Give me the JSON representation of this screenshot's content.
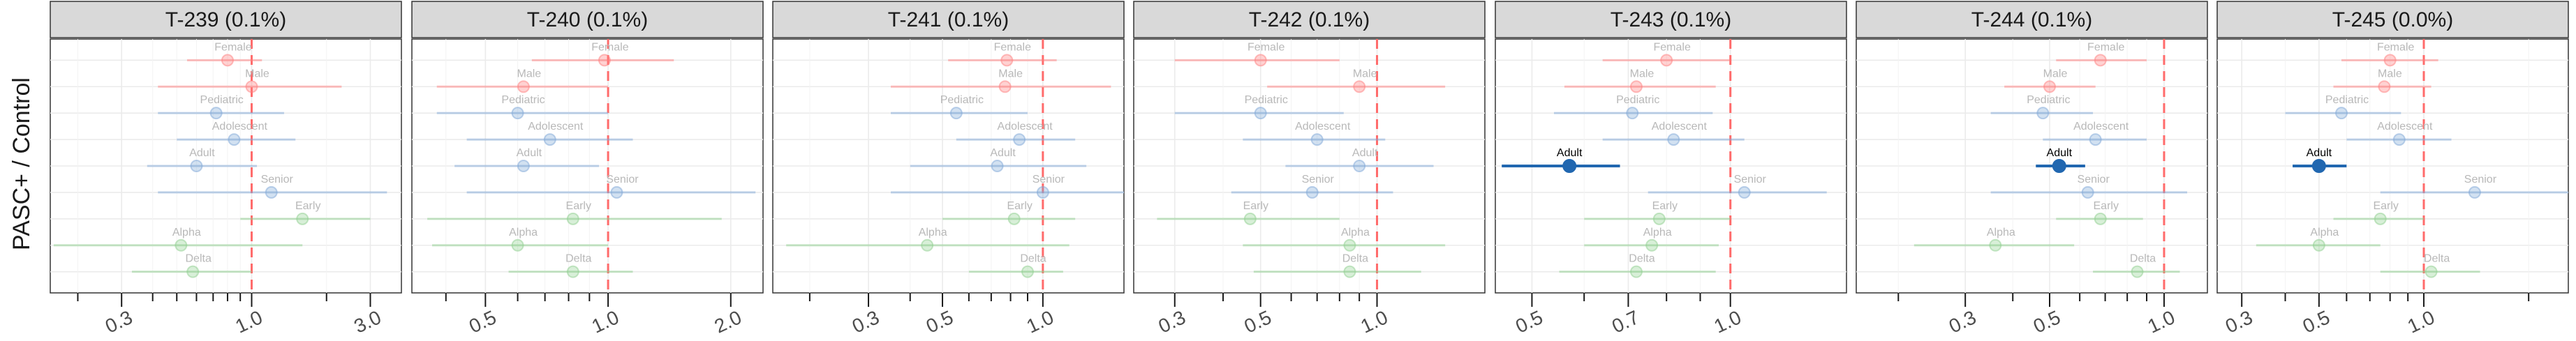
{
  "chart_data": {
    "type": "forest",
    "ylabel": "PASC+ / Control",
    "x_scale": "log",
    "reference_line": 1.0,
    "colors": {
      "sex": "#ff7f7f",
      "age": "#7fa8d8",
      "wave": "#8fd08f",
      "highlight": "#2167b0"
    },
    "row_order": [
      "Female",
      "Male",
      "Pediatric",
      "Adolescent",
      "Adult",
      "Senior",
      "Early",
      "Alpha",
      "Delta"
    ],
    "row_groups": {
      "Female": "sex",
      "Male": "sex",
      "Pediatric": "age",
      "Adolescent": "age",
      "Adult": "age",
      "Senior": "age",
      "Early": "wave",
      "Alpha": "wave",
      "Delta": "wave"
    },
    "panels": [
      {
        "title": "T-239 (0.1%)",
        "xlim": [
          0.155,
          4.0
        ],
        "xticks": [
          0.3,
          1.0,
          3.0
        ],
        "xtick_labels": [
          "0.3",
          "1.0",
          "3.0"
        ],
        "points": [
          {
            "label": "Female",
            "est": 0.8,
            "lo": 0.55,
            "hi": 1.1,
            "significant": false
          },
          {
            "label": "Male",
            "est": 1.0,
            "lo": 0.42,
            "hi": 2.3,
            "significant": false
          },
          {
            "label": "Pediatric",
            "est": 0.72,
            "lo": 0.42,
            "hi": 1.35,
            "significant": false
          },
          {
            "label": "Adolescent",
            "est": 0.85,
            "lo": 0.5,
            "hi": 1.5,
            "significant": false
          },
          {
            "label": "Adult",
            "est": 0.6,
            "lo": 0.38,
            "hi": 1.05,
            "significant": false
          },
          {
            "label": "Senior",
            "est": 1.2,
            "lo": 0.42,
            "hi": 3.5,
            "significant": false
          },
          {
            "label": "Early",
            "est": 1.6,
            "lo": 0.9,
            "hi": 3.0,
            "significant": false
          },
          {
            "label": "Alpha",
            "est": 0.52,
            "lo": 0.16,
            "hi": 1.6,
            "significant": false
          },
          {
            "label": "Delta",
            "est": 0.58,
            "lo": 0.33,
            "hi": 1.0,
            "significant": false
          }
        ]
      },
      {
        "title": "T-240 (0.1%)",
        "xlim": [
          0.33,
          2.4
        ],
        "xticks": [
          0.5,
          1.0,
          2.0
        ],
        "xtick_labels": [
          "0.5",
          "1.0",
          "2.0"
        ],
        "points": [
          {
            "label": "Female",
            "est": 0.98,
            "lo": 0.65,
            "hi": 1.45,
            "significant": false
          },
          {
            "label": "Male",
            "est": 0.62,
            "lo": 0.38,
            "hi": 1.0,
            "significant": false
          },
          {
            "label": "Pediatric",
            "est": 0.6,
            "lo": 0.38,
            "hi": 1.0,
            "significant": false
          },
          {
            "label": "Adolescent",
            "est": 0.72,
            "lo": 0.45,
            "hi": 1.15,
            "significant": false
          },
          {
            "label": "Adult",
            "est": 0.62,
            "lo": 0.42,
            "hi": 0.95,
            "significant": false
          },
          {
            "label": "Senior",
            "est": 1.05,
            "lo": 0.45,
            "hi": 2.3,
            "significant": false
          },
          {
            "label": "Early",
            "est": 0.82,
            "lo": 0.36,
            "hi": 1.9,
            "significant": false
          },
          {
            "label": "Alpha",
            "est": 0.6,
            "lo": 0.37,
            "hi": 1.0,
            "significant": false
          },
          {
            "label": "Delta",
            "est": 0.82,
            "lo": 0.57,
            "hi": 1.15,
            "significant": false
          }
        ]
      },
      {
        "title": "T-241 (0.1%)",
        "xlim": [
          0.155,
          1.75
        ],
        "xticks": [
          0.3,
          0.5,
          1.0
        ],
        "xtick_labels": [
          "0.3",
          "0.5",
          "1.0"
        ],
        "points": [
          {
            "label": "Female",
            "est": 0.78,
            "lo": 0.52,
            "hi": 1.1,
            "significant": false
          },
          {
            "label": "Male",
            "est": 0.77,
            "lo": 0.35,
            "hi": 1.6,
            "significant": false
          },
          {
            "label": "Pediatric",
            "est": 0.55,
            "lo": 0.35,
            "hi": 0.9,
            "significant": false
          },
          {
            "label": "Adolescent",
            "est": 0.85,
            "lo": 0.55,
            "hi": 1.25,
            "significant": false
          },
          {
            "label": "Adult",
            "est": 0.73,
            "lo": 0.4,
            "hi": 1.35,
            "significant": false
          },
          {
            "label": "Senior",
            "est": 1.0,
            "lo": 0.35,
            "hi": 1.8,
            "significant": false
          },
          {
            "label": "Early",
            "est": 0.82,
            "lo": 0.5,
            "hi": 1.25,
            "significant": false
          },
          {
            "label": "Alpha",
            "est": 0.45,
            "lo": 0.17,
            "hi": 1.2,
            "significant": false
          },
          {
            "label": "Delta",
            "est": 0.9,
            "lo": 0.6,
            "hi": 1.15,
            "significant": false
          }
        ]
      },
      {
        "title": "T-242 (0.1%)",
        "xlim": [
          0.235,
          1.9
        ],
        "xticks": [
          0.3,
          0.5,
          1.0
        ],
        "xtick_labels": [
          "0.3",
          "0.5",
          "1.0"
        ],
        "points": [
          {
            "label": "Female",
            "est": 0.5,
            "lo": 0.3,
            "hi": 0.8,
            "significant": false
          },
          {
            "label": "Male",
            "est": 0.9,
            "lo": 0.52,
            "hi": 1.5,
            "significant": false
          },
          {
            "label": "Pediatric",
            "est": 0.5,
            "lo": 0.3,
            "hi": 0.82,
            "significant": false
          },
          {
            "label": "Adolescent",
            "est": 0.7,
            "lo": 0.45,
            "hi": 1.05,
            "significant": false
          },
          {
            "label": "Adult",
            "est": 0.9,
            "lo": 0.58,
            "hi": 1.4,
            "significant": false
          },
          {
            "label": "Senior",
            "est": 0.68,
            "lo": 0.42,
            "hi": 1.1,
            "significant": false
          },
          {
            "label": "Early",
            "est": 0.47,
            "lo": 0.27,
            "hi": 0.8,
            "significant": false
          },
          {
            "label": "Alpha",
            "est": 0.85,
            "lo": 0.45,
            "hi": 1.5,
            "significant": false
          },
          {
            "label": "Delta",
            "est": 0.85,
            "lo": 0.48,
            "hi": 1.3,
            "significant": false
          }
        ]
      },
      {
        "title": "T-243 (0.1%)",
        "xlim": [
          0.44,
          1.5
        ],
        "xticks": [
          0.5,
          0.7,
          1.0
        ],
        "xtick_labels": [
          "0.5",
          "0.7",
          "1.0"
        ],
        "points": [
          {
            "label": "Female",
            "est": 0.8,
            "lo": 0.64,
            "hi": 1.0,
            "significant": false
          },
          {
            "label": "Male",
            "est": 0.72,
            "lo": 0.56,
            "hi": 0.95,
            "significant": false
          },
          {
            "label": "Pediatric",
            "est": 0.71,
            "lo": 0.54,
            "hi": 0.94,
            "significant": false
          },
          {
            "label": "Adolescent",
            "est": 0.82,
            "lo": 0.64,
            "hi": 1.05,
            "significant": false
          },
          {
            "label": "Adult",
            "est": 0.57,
            "lo": 0.45,
            "hi": 0.68,
            "significant": true
          },
          {
            "label": "Senior",
            "est": 1.05,
            "lo": 0.75,
            "hi": 1.4,
            "significant": false
          },
          {
            "label": "Early",
            "est": 0.78,
            "lo": 0.6,
            "hi": 1.0,
            "significant": false
          },
          {
            "label": "Alpha",
            "est": 0.76,
            "lo": 0.6,
            "hi": 0.96,
            "significant": false
          },
          {
            "label": "Delta",
            "est": 0.72,
            "lo": 0.55,
            "hi": 0.95,
            "significant": false
          }
        ]
      },
      {
        "title": "T-244 (0.1%)",
        "xlim": [
          0.155,
          1.3
        ],
        "xticks": [
          0.3,
          0.5,
          1.0
        ],
        "xtick_labels": [
          "0.3",
          "0.5",
          "1.0"
        ],
        "points": [
          {
            "label": "Female",
            "est": 0.68,
            "lo": 0.52,
            "hi": 0.9,
            "significant": false
          },
          {
            "label": "Male",
            "est": 0.5,
            "lo": 0.38,
            "hi": 0.66,
            "significant": false
          },
          {
            "label": "Pediatric",
            "est": 0.48,
            "lo": 0.35,
            "hi": 0.65,
            "significant": false
          },
          {
            "label": "Adolescent",
            "est": 0.66,
            "lo": 0.48,
            "hi": 0.9,
            "significant": false
          },
          {
            "label": "Adult",
            "est": 0.53,
            "lo": 0.46,
            "hi": 0.62,
            "significant": true
          },
          {
            "label": "Senior",
            "est": 0.63,
            "lo": 0.35,
            "hi": 1.15,
            "significant": false
          },
          {
            "label": "Early",
            "est": 0.68,
            "lo": 0.52,
            "hi": 0.88,
            "significant": false
          },
          {
            "label": "Alpha",
            "est": 0.36,
            "lo": 0.22,
            "hi": 0.58,
            "significant": false
          },
          {
            "label": "Delta",
            "est": 0.85,
            "lo": 0.65,
            "hi": 1.1,
            "significant": false
          }
        ]
      },
      {
        "title": "T-245 (0.0%)",
        "xlim": [
          0.255,
          2.6
        ],
        "xticks": [
          0.3,
          0.5,
          1.0
        ],
        "xtick_labels": [
          "0.3",
          "0.5",
          "1.0"
        ],
        "points": [
          {
            "label": "Female",
            "est": 0.8,
            "lo": 0.58,
            "hi": 1.1,
            "significant": false
          },
          {
            "label": "Male",
            "est": 0.77,
            "lo": 0.55,
            "hi": 1.05,
            "significant": false
          },
          {
            "label": "Pediatric",
            "est": 0.58,
            "lo": 0.4,
            "hi": 0.86,
            "significant": false
          },
          {
            "label": "Adolescent",
            "est": 0.85,
            "lo": 0.6,
            "hi": 1.2,
            "significant": false
          },
          {
            "label": "Adult",
            "est": 0.5,
            "lo": 0.42,
            "hi": 0.6,
            "significant": true
          },
          {
            "label": "Senior",
            "est": 1.4,
            "lo": 0.75,
            "hi": 2.6,
            "significant": false
          },
          {
            "label": "Early",
            "est": 0.75,
            "lo": 0.55,
            "hi": 1.0,
            "significant": false
          },
          {
            "label": "Alpha",
            "est": 0.5,
            "lo": 0.33,
            "hi": 0.75,
            "significant": false
          },
          {
            "label": "Delta",
            "est": 1.05,
            "lo": 0.75,
            "hi": 1.45,
            "significant": false
          }
        ]
      }
    ]
  }
}
